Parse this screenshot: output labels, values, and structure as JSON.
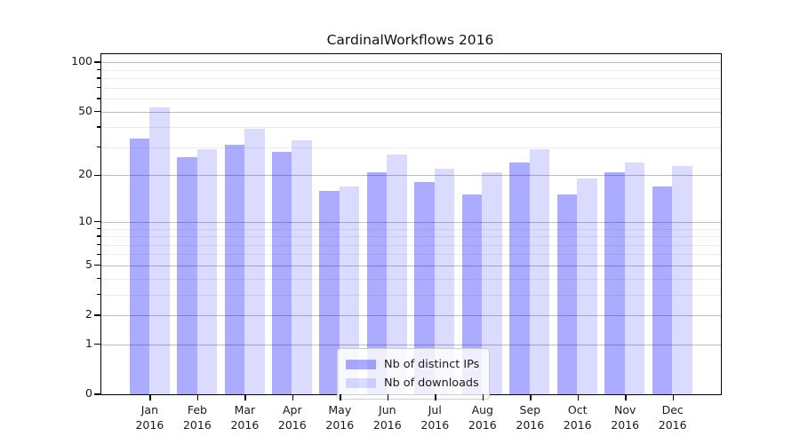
{
  "title": "CardinalWorkflows 2016",
  "chart_data": {
    "type": "bar",
    "title": "CardinalWorkflows 2016",
    "categories": [
      "Jan 2016",
      "Feb 2016",
      "Mar 2016",
      "Apr 2016",
      "May 2016",
      "Jun 2016",
      "Jul 2016",
      "Aug 2016",
      "Sep 2016",
      "Oct 2016",
      "Nov 2016",
      "Dec 2016"
    ],
    "series": [
      {
        "name": "Nb of distinct IPs",
        "color": "rgba(0,0,255,0.33)",
        "values": [
          34,
          26,
          31,
          28,
          16,
          21,
          18,
          15,
          24,
          15,
          21,
          17
        ]
      },
      {
        "name": "Nb of downloads",
        "color": "rgba(0,0,255,0.14)",
        "values": [
          53,
          29,
          39,
          33,
          17,
          27,
          22,
          21,
          29,
          19,
          24,
          23
        ]
      }
    ],
    "xlabel": "",
    "ylabel": "",
    "yscale": "log1p",
    "ylim": [
      0,
      112
    ],
    "y_major_ticks": [
      0,
      1,
      2,
      5,
      10,
      20,
      50,
      100
    ],
    "y_minor_ticks": [
      3,
      4,
      6,
      7,
      8,
      9,
      30,
      40,
      60,
      70,
      80,
      90
    ],
    "grid": "both",
    "legend_position": "lower center inside",
    "bar_group": "side-by-side"
  },
  "colors": {
    "bar_dark": "rgba(0,0,255,0.33)",
    "bar_light": "rgba(0,0,255,0.14)",
    "grid_major": "#bdbdbd",
    "grid_minor": "#ececec",
    "spine": "#000000",
    "background": "#ffffff"
  }
}
